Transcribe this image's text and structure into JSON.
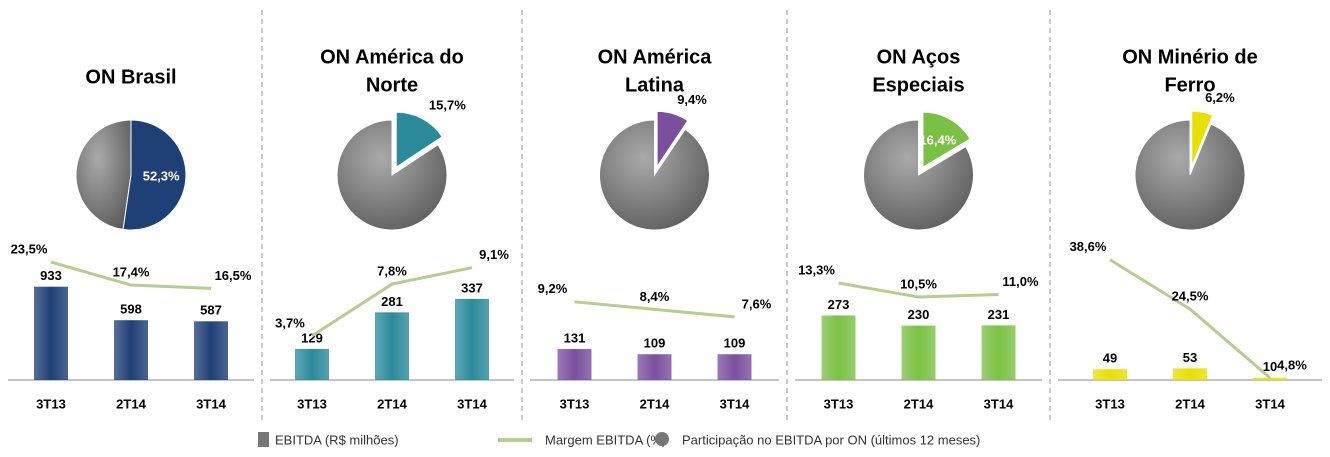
{
  "chart_data": [
    {
      "type": "bar",
      "title": [
        "ON Brasil"
      ],
      "categories": [
        "3T13",
        "2T14",
        "3T14"
      ],
      "values": [
        933,
        598,
        587
      ],
      "color": "#1f3f77",
      "ylim": [
        0,
        1300
      ],
      "margin": {
        "values": [
          23.5,
          17.4,
          16.5
        ],
        "value_labels": [
          "23,5%",
          "17,4%",
          "16,5%"
        ],
        "color": "#b9cc8f"
      },
      "y2lim": [
        -7.8,
        26.7
      ],
      "share": {
        "value": 52.3,
        "label": "52,3%",
        "explode": false,
        "label_inside": true
      }
    },
    {
      "type": "bar",
      "title": [
        "ON América do",
        "Norte"
      ],
      "categories": [
        "3T13",
        "2T14",
        "3T14"
      ],
      "values": [
        129,
        281,
        337
      ],
      "color": "#2a8a9a",
      "ylim": [
        0,
        540
      ],
      "margin": {
        "values": [
          3.7,
          7.8,
          9.1
        ],
        "value_labels": [
          "3,7%",
          "7,8%",
          "9,1%"
        ],
        "color": "#b9cc8f"
      },
      "y2lim": [
        0.2,
        10.5
      ],
      "share": {
        "value": 15.7,
        "label": "15,7%",
        "explode": true,
        "label_inside": false
      }
    },
    {
      "type": "bar",
      "title": [
        "ON América",
        "Latina"
      ],
      "categories": [
        "3T13",
        "2T14",
        "3T14"
      ],
      "values": [
        131,
        109,
        109
      ],
      "color": "#7a4f9e",
      "ylim": [
        0,
        550
      ],
      "margin": {
        "values": [
          9.2,
          8.4,
          7.6
        ],
        "value_labels": [
          "9,2%",
          "8,4%",
          "7,6%"
        ],
        "color": "#b9cc8f"
      },
      "y2lim": [
        0.9,
        14.7
      ],
      "share": {
        "value": 9.4,
        "label": "9,4%",
        "explode": true,
        "label_inside": false
      }
    },
    {
      "type": "bar",
      "title": [
        "ON Aços",
        "Especiais"
      ],
      "categories": [
        "3T13",
        "2T14",
        "3T14"
      ],
      "values": [
        273,
        230,
        231
      ],
      "color": "#7ac143",
      "ylim": [
        0,
        550
      ],
      "margin": {
        "values": [
          13.3,
          10.5,
          11.0
        ],
        "value_labels": [
          "13,3%",
          "10,5%",
          "11,0%"
        ],
        "color": "#b9cc8f"
      },
      "y2lim": [
        -6.1,
        19.9
      ],
      "share": {
        "value": 16.4,
        "label": "16,4%",
        "explode": true,
        "label_inside": true
      }
    },
    {
      "type": "bar",
      "title": [
        "ON Minério de",
        "Ferro"
      ],
      "categories": [
        "3T13",
        "2T14",
        "3T14"
      ],
      "values": [
        49,
        53,
        10
      ],
      "color": "#e8e000",
      "ylim": [
        0,
        590
      ],
      "margin": {
        "values": [
          38.6,
          24.5,
          4.8
        ],
        "value_labels": [
          "38,6%",
          "24,5%",
          "4,8%"
        ],
        "color": "#b9cc8f"
      },
      "y2lim": [
        4.2,
        41.4
      ],
      "share": {
        "value": 6.2,
        "label": "6,2%",
        "explode": true,
        "label_inside": false
      }
    }
  ],
  "legend": [
    "EBITDA (R$ milhões)",
    "Margem EBITDA (%)",
    "Participação no EBITDA por ON (últimos 12 meses)"
  ]
}
